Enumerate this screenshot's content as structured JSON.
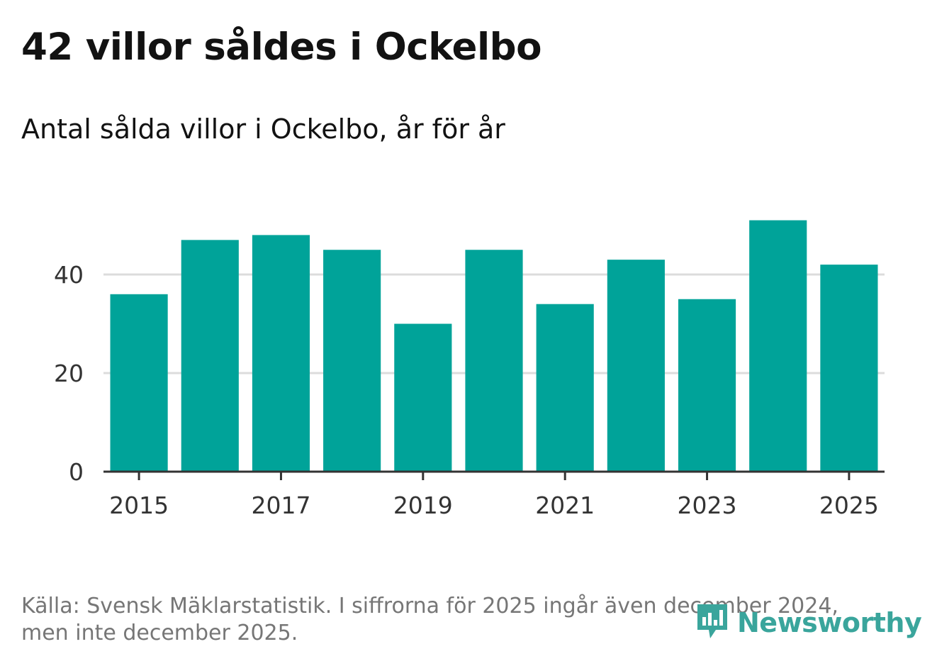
{
  "header": {
    "title": "42 villor såldes i Ockelbo",
    "subtitle": "Antal sålda villor i Ockelbo, år för år"
  },
  "chart_data": {
    "type": "bar",
    "categories": [
      "2015",
      "2016",
      "2017",
      "2018",
      "2019",
      "2020",
      "2021",
      "2022",
      "2023",
      "2024",
      "2025"
    ],
    "values": [
      36,
      47,
      48,
      45,
      30,
      45,
      34,
      43,
      35,
      51,
      42
    ],
    "x_tick_labels": [
      "2015",
      "2017",
      "2019",
      "2021",
      "2023",
      "2025"
    ],
    "y_ticks": [
      0,
      20,
      40
    ],
    "ylim": [
      0,
      52
    ],
    "title": "Antal sålda villor i Ockelbo, år för år",
    "xlabel": "",
    "ylabel": "",
    "bar_color": "#00a399",
    "grid": true
  },
  "footer": {
    "source": "Källa: Svensk Mäklarstatistik. I siffrorna för 2025 ingår även december 2024, men inte december 2025."
  },
  "logo": {
    "text": "Newsworthy",
    "icon": "newsworthy-logo-icon",
    "color": "#3aa59c"
  }
}
